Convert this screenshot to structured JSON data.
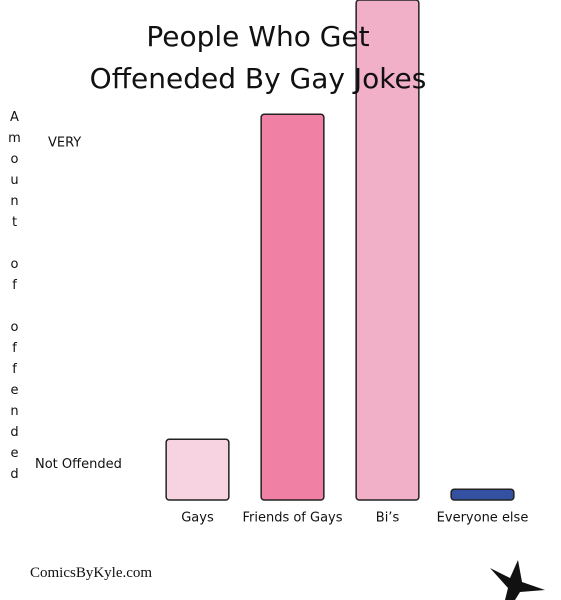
{
  "chart_data": {
    "type": "bar",
    "title": "People Who Get Offeneded By Gay Jokes",
    "y_label": "Amount of offended",
    "categories": [
      "Gays",
      "Friends of Gays",
      "Bi’s",
      "Everyone else"
    ],
    "values": [
      1.7,
      10.8,
      14,
      0.3
    ],
    "colors": [
      "#f7d3e1",
      "#f080a4",
      "#f2afc8",
      "#3450a0"
    ],
    "ylim": [
      0,
      14
    ],
    "yticks": [
      {
        "value": 1,
        "label": "Not Offended"
      },
      {
        "value": 10,
        "label": "VERY"
      }
    ],
    "grid": false,
    "credit": "ComicsByKyle.com"
  }
}
